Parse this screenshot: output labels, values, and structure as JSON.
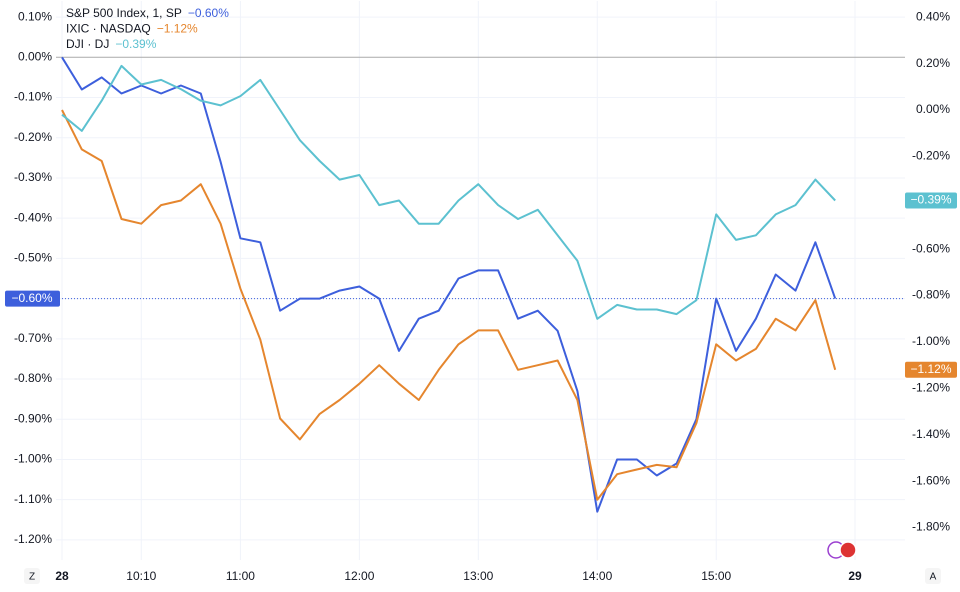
{
  "chart_data": {
    "type": "line",
    "categories": [
      "28",
      null,
      null,
      null,
      "10:10",
      null,
      null,
      null,
      null,
      "11:00",
      null,
      null,
      null,
      null,
      null,
      "12:00",
      null,
      null,
      null,
      null,
      null,
      "13:00",
      null,
      null,
      null,
      null,
      null,
      "14:00",
      null,
      null,
      null,
      null,
      null,
      "15:00",
      null,
      null,
      null,
      null,
      null,
      null,
      "29"
    ],
    "series": [
      {
        "name": "S&P 500 Index, 1, SP",
        "change_label": "−0.60%",
        "color": "#3d5fdc",
        "axis": "y",
        "values": [
          0.0,
          -0.08,
          -0.05,
          -0.09,
          -0.07,
          -0.09,
          -0.07,
          -0.09,
          -0.26,
          -0.45,
          -0.46,
          -0.63,
          -0.6,
          -0.6,
          -0.58,
          -0.57,
          -0.6,
          -0.73,
          -0.65,
          -0.63,
          -0.55,
          -0.53,
          -0.53,
          -0.65,
          -0.63,
          -0.68,
          -0.83,
          -1.13,
          -1.0,
          -1.0,
          -1.04,
          -1.01,
          -0.9,
          -0.6,
          -0.73,
          -0.65,
          -0.54,
          -0.58,
          -0.46,
          -0.6,
          null
        ]
      },
      {
        "name": "IXIC · NASDAQ",
        "change_label": "−1.12%",
        "color": "#e5862e",
        "axis": "y2",
        "values": [
          0.0,
          -0.17,
          -0.22,
          -0.47,
          -0.49,
          -0.41,
          -0.39,
          -0.32,
          -0.49,
          -0.77,
          -0.99,
          -1.33,
          -1.42,
          -1.31,
          -1.25,
          -1.18,
          -1.1,
          -1.18,
          -1.25,
          -1.12,
          -1.01,
          -0.95,
          -0.95,
          -1.12,
          -1.1,
          -1.08,
          -1.25,
          -1.68,
          -1.57,
          -1.55,
          -1.53,
          -1.54,
          -1.35,
          -1.01,
          -1.08,
          -1.03,
          -0.9,
          -0.95,
          -0.82,
          -1.12,
          null
        ]
      },
      {
        "name": "DJI · DJ",
        "change_label": "−0.39%",
        "color": "#5cc1d0",
        "axis": "y2",
        "values": [
          -0.02,
          -0.09,
          0.04,
          0.19,
          0.11,
          0.13,
          0.09,
          0.04,
          0.02,
          0.06,
          0.13,
          0.0,
          -0.13,
          -0.22,
          -0.3,
          -0.28,
          -0.41,
          -0.39,
          -0.49,
          -0.49,
          -0.39,
          -0.32,
          -0.41,
          -0.47,
          -0.43,
          -0.54,
          -0.65,
          -0.9,
          -0.84,
          -0.86,
          -0.86,
          -0.88,
          -0.82,
          -0.45,
          -0.56,
          -0.54,
          -0.45,
          -0.41,
          -0.3,
          -0.39,
          null
        ]
      }
    ],
    "ylim": [
      -1.25,
      0.14
    ],
    "yticks": [
      {
        "value": 0.1,
        "label": "0.10%"
      },
      {
        "value": 0,
        "label": "0.00%"
      },
      {
        "value": -0.1,
        "label": "-0.10%"
      },
      {
        "value": -0.2,
        "label": "-0.20%"
      },
      {
        "value": -0.3,
        "label": "-0.30%"
      },
      {
        "value": -0.4,
        "label": "-0.40%"
      },
      {
        "value": -0.5,
        "label": "-0.50%"
      },
      {
        "value": -0.6,
        "label": "-0.60%"
      },
      {
        "value": -0.7,
        "label": "-0.70%"
      },
      {
        "value": -0.8,
        "label": "-0.80%"
      },
      {
        "value": -0.9,
        "label": "-0.90%"
      },
      {
        "value": -1.0,
        "label": "-1.00%"
      },
      {
        "value": -1.1,
        "label": "-1.10%"
      },
      {
        "value": -1.2,
        "label": "-1.20%"
      }
    ],
    "y2lim": [
      -1.94,
      0.47
    ],
    "y2ticks": [
      {
        "value": 0.4,
        "label": "0.40%"
      },
      {
        "value": 0.2,
        "label": "0.20%"
      },
      {
        "value": 0,
        "label": "0.00%"
      },
      {
        "value": -0.2,
        "label": "-0.20%"
      },
      {
        "value": -0.4,
        "label": "-0.40%"
      },
      {
        "value": -0.6,
        "label": "-0.60%"
      },
      {
        "value": -0.8,
        "label": "-0.80%"
      },
      {
        "value": -1.0,
        "label": "-1.00%"
      },
      {
        "value": -1.2,
        "label": "-1.20%"
      },
      {
        "value": -1.4,
        "label": "-1.40%"
      },
      {
        "value": -1.6,
        "label": "-1.60%"
      },
      {
        "value": -1.8,
        "label": "-1.80%"
      }
    ],
    "grid": true
  },
  "toolbar": {
    "left_button": "Z",
    "right_button": "A"
  }
}
